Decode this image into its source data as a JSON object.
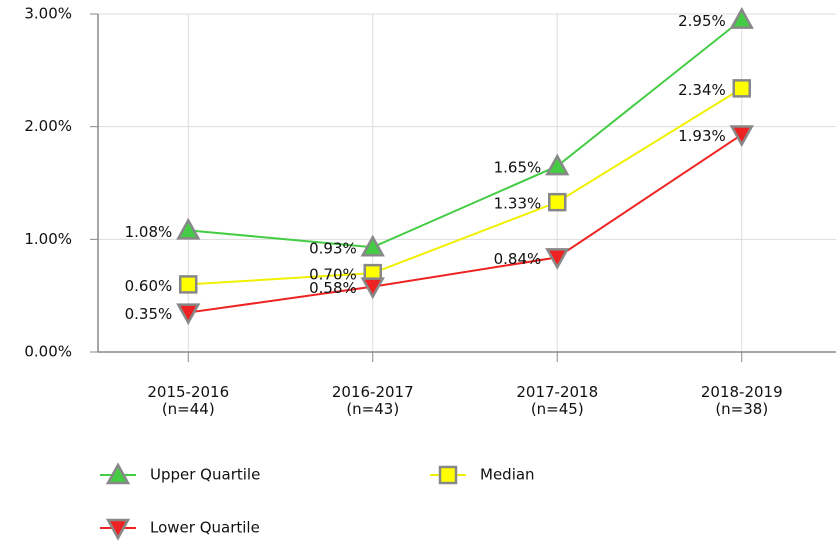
{
  "chart_data": {
    "type": "line",
    "categories": [
      "2015-2016\n(n=44)",
      "2016-2017\n(n=43)",
      "2017-2018\n(n=45)",
      "2018-2019\n(n=38)"
    ],
    "series": [
      {
        "name": "Upper Quartile",
        "color": "#44cc44",
        "marker": "triangle-up",
        "values": [
          1.08,
          0.93,
          1.65,
          2.95
        ],
        "value_labels": [
          "1.08%",
          "0.93%",
          "1.65%",
          "2.95%"
        ]
      },
      {
        "name": "Median",
        "color": "#ffff00",
        "marker": "square",
        "values": [
          0.6,
          0.7,
          1.33,
          2.34
        ],
        "value_labels": [
          "0.60%",
          "0.70%",
          "1.33%",
          "2.34%"
        ]
      },
      {
        "name": "Lower Quartile",
        "color": "#ee2222",
        "marker": "triangle-down",
        "values": [
          0.35,
          0.58,
          0.84,
          1.93
        ],
        "value_labels": [
          "0.35%",
          "0.58%",
          "0.84%",
          "1.93%"
        ]
      }
    ],
    "ylim": [
      0,
      3
    ],
    "yticks": [
      {
        "value": 0,
        "label": "0.00%"
      },
      {
        "value": 1,
        "label": "1.00%"
      },
      {
        "value": 2,
        "label": "2.00%"
      },
      {
        "value": 3,
        "label": "3.00%"
      }
    ],
    "grid": true
  }
}
